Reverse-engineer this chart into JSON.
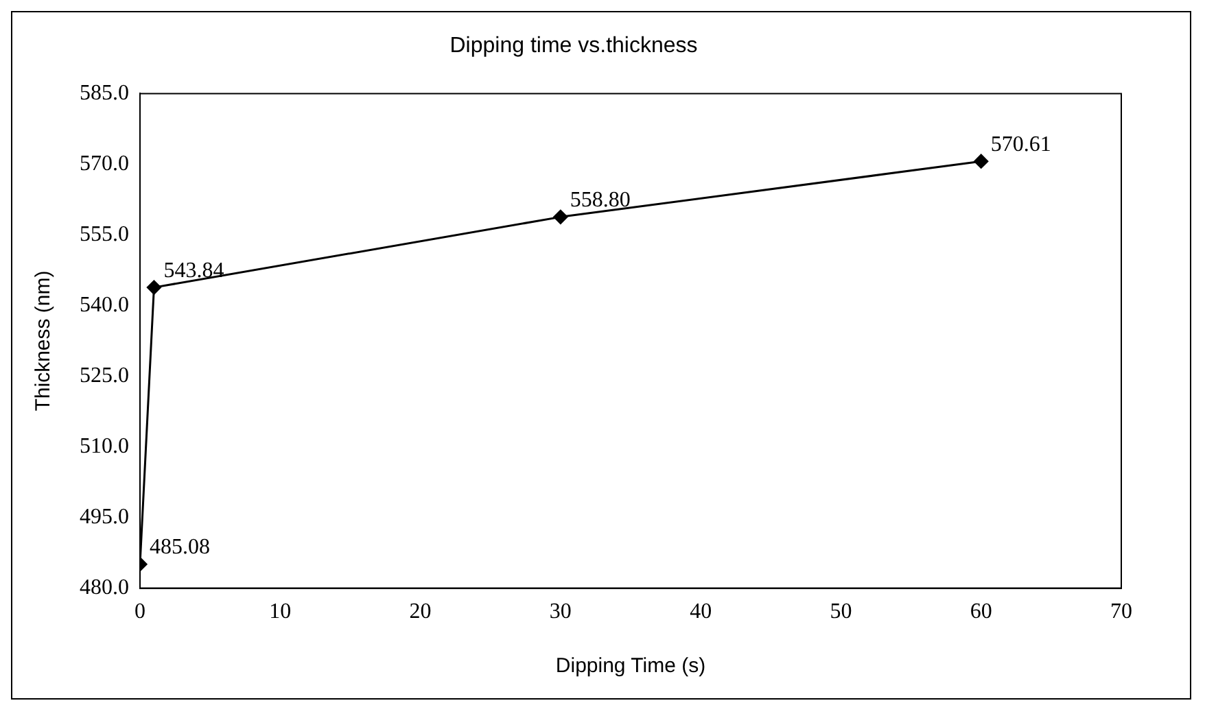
{
  "chart_data": {
    "type": "line",
    "title": "Dipping time vs.thickness",
    "xlabel": "Dipping Time (s)",
    "ylabel": "Thickness (nm)",
    "x": [
      0,
      1,
      30,
      60
    ],
    "series": [
      {
        "color": "#000000",
        "values": [
          485.08,
          543.84,
          558.8,
          570.61
        ],
        "value_labels": [
          "485.08",
          "543.84",
          "558.80",
          "570.61"
        ]
      }
    ],
    "xlim": [
      0,
      70
    ],
    "xticks": [
      0,
      10,
      20,
      30,
      40,
      50,
      60,
      70
    ],
    "ylim": [
      480,
      585
    ],
    "yticks": [
      {
        "value": 480,
        "label": "480.0"
      },
      {
        "value": 495,
        "label": "495.0"
      },
      {
        "value": 510,
        "label": "510.0"
      },
      {
        "value": 525,
        "label": "525.0"
      },
      {
        "value": 540,
        "label": "540.0"
      },
      {
        "value": 555,
        "label": "555.0"
      },
      {
        "value": 570,
        "label": "570.0"
      },
      {
        "value": 585,
        "label": "585.0"
      }
    ],
    "grid": false,
    "legend": false,
    "marker": "diamond",
    "line_style": "solid"
  }
}
